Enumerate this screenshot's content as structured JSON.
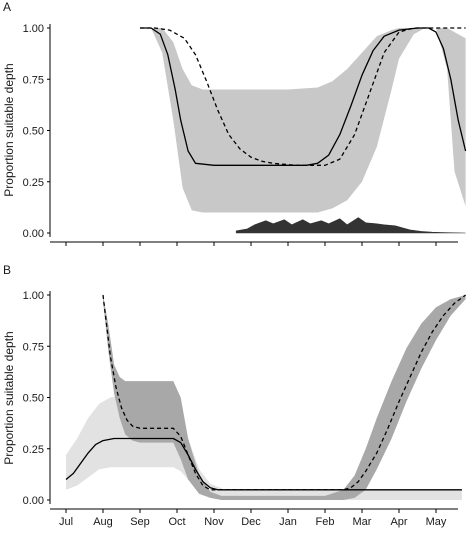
{
  "chart_data": [
    {
      "panel_label": "A",
      "type": "line",
      "ylabel": "Proportion suitable depth",
      "ylim": [
        0,
        1
      ],
      "yticks": [
        0.0,
        0.25,
        0.5,
        0.75,
        1.0
      ],
      "ytick_labels": [
        "0.00",
        "0.25",
        "0.50",
        "0.75",
        "1.00"
      ],
      "x_categories": [
        "Jul",
        "Aug",
        "Sep",
        "Oct",
        "Nov",
        "Dec",
        "Jan",
        "Feb",
        "Mar",
        "Apr",
        "May"
      ],
      "xtick_labels_visible": false,
      "grid": false,
      "bands": [
        {
          "fill": "#c8c8c8",
          "x": [
            2.0,
            2.3,
            2.6,
            2.9,
            3.15,
            3.4,
            3.7,
            4.0,
            5.0,
            6.0,
            6.8,
            7.2,
            7.6,
            8.0,
            8.4,
            8.8,
            9.0,
            9.4,
            9.7,
            10.0,
            10.3,
            10.5,
            10.8
          ],
          "lower": [
            1.0,
            1.0,
            0.88,
            0.55,
            0.22,
            0.11,
            0.1,
            0.1,
            0.1,
            0.1,
            0.1,
            0.12,
            0.16,
            0.25,
            0.42,
            0.7,
            0.85,
            0.97,
            1.0,
            1.0,
            0.8,
            0.3,
            0.13
          ],
          "upper": [
            1.0,
            1.0,
            1.0,
            0.93,
            0.8,
            0.72,
            0.7,
            0.7,
            0.7,
            0.7,
            0.71,
            0.74,
            0.8,
            0.88,
            0.96,
            0.99,
            1.0,
            1.0,
            1.0,
            1.0,
            1.0,
            0.98,
            0.95
          ]
        }
      ],
      "series": [
        {
          "style": "solid",
          "x": [
            2.0,
            2.3,
            2.55,
            2.75,
            2.95,
            3.1,
            3.3,
            3.5,
            4.0,
            5.0,
            6.0,
            6.5,
            6.8,
            7.1,
            7.4,
            7.7,
            8.0,
            8.3,
            8.6,
            9.0,
            9.5,
            9.8,
            10.0,
            10.2,
            10.4,
            10.6,
            10.8
          ],
          "y": [
            1.0,
            1.0,
            0.97,
            0.87,
            0.7,
            0.55,
            0.4,
            0.34,
            0.33,
            0.33,
            0.33,
            0.33,
            0.34,
            0.38,
            0.48,
            0.62,
            0.77,
            0.89,
            0.96,
            0.99,
            1.0,
            1.0,
            0.98,
            0.9,
            0.75,
            0.55,
            0.4
          ]
        },
        {
          "style": "dashed",
          "x": [
            2.0,
            2.4,
            2.8,
            3.2,
            3.5,
            3.8,
            4.1,
            4.4,
            4.7,
            5.0,
            5.3,
            5.6,
            5.9,
            6.2,
            6.6,
            7.0,
            7.4,
            7.8,
            8.2,
            8.6,
            9.0,
            9.4,
            9.7,
            10.0,
            10.4,
            10.8
          ],
          "y": [
            1.0,
            1.0,
            0.99,
            0.95,
            0.87,
            0.74,
            0.6,
            0.48,
            0.41,
            0.37,
            0.35,
            0.34,
            0.335,
            0.33,
            0.33,
            0.33,
            0.36,
            0.48,
            0.68,
            0.88,
            0.98,
            1.0,
            1.0,
            1.0,
            1.0,
            1.0
          ]
        }
      ],
      "density": {
        "fill": "#333333",
        "x": [
          4.6,
          4.9,
          5.1,
          5.4,
          5.6,
          5.9,
          6.1,
          6.4,
          6.6,
          6.9,
          7.1,
          7.4,
          7.6,
          7.9,
          8.1,
          8.4,
          8.6,
          8.9,
          9.1,
          9.3,
          9.6,
          9.9,
          10.2,
          10.5,
          10.8
        ],
        "y": [
          0.01,
          0.02,
          0.04,
          0.06,
          0.045,
          0.065,
          0.04,
          0.065,
          0.045,
          0.06,
          0.045,
          0.07,
          0.04,
          0.075,
          0.05,
          0.045,
          0.04,
          0.035,
          0.025,
          0.015,
          0.008,
          0.004,
          0.002,
          0.001,
          0.0
        ]
      }
    },
    {
      "panel_label": "B",
      "type": "line",
      "ylabel": "Proportion suitable depth",
      "ylim": [
        0,
        1
      ],
      "yticks": [
        0.0,
        0.25,
        0.5,
        0.75,
        1.0
      ],
      "ytick_labels": [
        "0.00",
        "0.25",
        "0.50",
        "0.75",
        "1.00"
      ],
      "x_categories": [
        "Jul",
        "Aug",
        "Sep",
        "Oct",
        "Nov",
        "Dec",
        "Jan",
        "Feb",
        "Mar",
        "Apr",
        "May"
      ],
      "xtick_labels_visible": true,
      "grid": false,
      "bands": [
        {
          "fill": "#e2e2e2",
          "x": [
            0.0,
            0.3,
            0.6,
            0.9,
            1.2,
            1.5,
            2.0,
            2.5,
            2.9,
            3.1,
            3.3,
            3.6,
            3.9,
            4.3,
            5.0,
            6.0,
            7.0,
            8.0,
            9.0,
            10.0,
            10.7
          ],
          "lower": [
            0.05,
            0.07,
            0.11,
            0.15,
            0.16,
            0.16,
            0.16,
            0.16,
            0.16,
            0.14,
            0.1,
            0.05,
            0.01,
            0.0,
            0.0,
            0.0,
            0.0,
            0.0,
            0.0,
            0.0,
            0.0
          ],
          "upper": [
            0.22,
            0.3,
            0.4,
            0.47,
            0.5,
            0.51,
            0.51,
            0.51,
            0.51,
            0.45,
            0.3,
            0.15,
            0.08,
            0.05,
            0.05,
            0.05,
            0.05,
            0.05,
            0.05,
            0.05,
            0.05
          ]
        },
        {
          "fill": "#a8a8a8",
          "x": [
            1.0,
            1.15,
            1.3,
            1.45,
            1.6,
            1.8,
            2.0,
            2.5,
            2.9,
            3.1,
            3.3,
            3.6,
            3.9,
            4.2,
            5.0,
            6.0,
            7.0,
            7.5,
            7.8,
            8.1,
            8.4,
            8.8,
            9.2,
            9.6,
            10.0,
            10.4,
            10.8
          ],
          "lower": [
            0.97,
            0.72,
            0.52,
            0.4,
            0.32,
            0.29,
            0.28,
            0.28,
            0.28,
            0.2,
            0.1,
            0.03,
            0.01,
            0.0,
            0.0,
            0.0,
            0.0,
            0.0,
            0.01,
            0.05,
            0.15,
            0.3,
            0.48,
            0.64,
            0.78,
            0.9,
            0.98
          ],
          "upper": [
            1.0,
            0.85,
            0.66,
            0.6,
            0.58,
            0.58,
            0.58,
            0.58,
            0.58,
            0.5,
            0.3,
            0.12,
            0.04,
            0.02,
            0.02,
            0.02,
            0.02,
            0.05,
            0.12,
            0.25,
            0.4,
            0.58,
            0.74,
            0.86,
            0.94,
            0.98,
            1.0
          ]
        }
      ],
      "series": [
        {
          "style": "solid",
          "x": [
            0.0,
            0.2,
            0.4,
            0.6,
            0.8,
            1.0,
            1.3,
            1.6,
            2.0,
            2.5,
            2.9,
            3.1,
            3.3,
            3.5,
            3.7,
            3.9,
            4.1,
            4.5,
            5.0,
            6.0,
            7.0,
            8.0,
            9.0,
            10.0,
            10.7
          ],
          "y": [
            0.1,
            0.13,
            0.18,
            0.23,
            0.27,
            0.29,
            0.3,
            0.3,
            0.3,
            0.3,
            0.3,
            0.28,
            0.22,
            0.15,
            0.09,
            0.06,
            0.05,
            0.05,
            0.05,
            0.05,
            0.05,
            0.05,
            0.05,
            0.05,
            0.05
          ]
        },
        {
          "style": "dashed",
          "x": [
            1.0,
            1.1,
            1.2,
            1.35,
            1.5,
            1.65,
            1.8,
            2.0,
            2.5,
            2.9,
            3.1,
            3.3,
            3.5,
            3.7,
            3.9,
            4.1,
            5.0,
            6.0,
            7.0,
            7.5,
            7.7,
            7.9,
            8.1,
            8.4,
            8.7,
            9.0,
            9.3,
            9.6,
            9.9,
            10.2,
            10.5,
            10.8
          ],
          "y": [
            1.0,
            0.85,
            0.7,
            0.55,
            0.45,
            0.39,
            0.36,
            0.35,
            0.35,
            0.35,
            0.31,
            0.22,
            0.13,
            0.07,
            0.05,
            0.05,
            0.05,
            0.05,
            0.05,
            0.05,
            0.06,
            0.09,
            0.14,
            0.23,
            0.35,
            0.48,
            0.6,
            0.72,
            0.82,
            0.9,
            0.96,
            1.0
          ]
        }
      ]
    }
  ]
}
